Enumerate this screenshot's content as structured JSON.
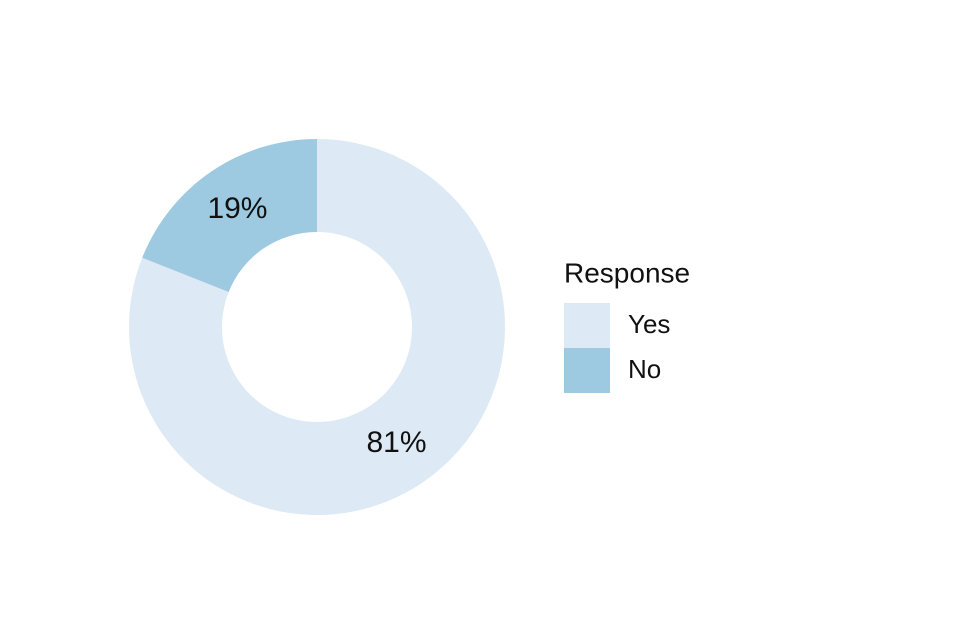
{
  "chart_data": {
    "type": "donut",
    "legend_title": "Response",
    "categories": [
      "Yes",
      "No"
    ],
    "values": [
      81,
      19
    ],
    "value_labels": [
      "81%",
      "19%"
    ],
    "colors": [
      "#ddeaf5",
      "#9ecae1"
    ],
    "legend": "right"
  }
}
